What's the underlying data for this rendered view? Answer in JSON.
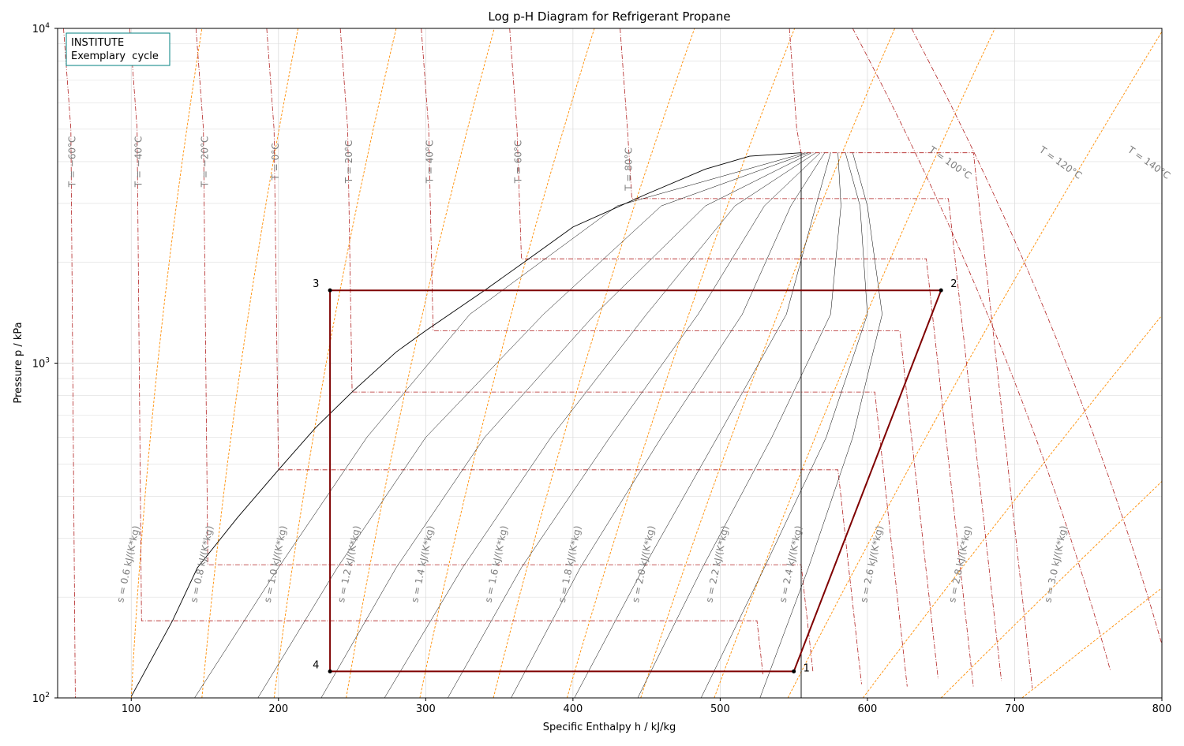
{
  "chart_data": {
    "type": "line",
    "title": "Log p-H Diagram for Refrigerant Propane",
    "xlabel": "Specific Enthalpy h / kJ/kg",
    "ylabel": "Pressure p / kPa",
    "xlim": [
      50,
      800
    ],
    "ylim": [
      100,
      10000
    ],
    "yscale": "log",
    "grid": true,
    "x_ticks": [
      "100",
      "200",
      "300",
      "400",
      "500",
      "600",
      "700",
      "800"
    ],
    "y_ticks": [
      {
        "base": "10",
        "exp": "2"
      },
      {
        "base": "10",
        "exp": "3"
      },
      {
        "base": "10",
        "exp": "4"
      }
    ],
    "annotation_box": [
      "INSTITUTE",
      "Exemplary  cycle"
    ],
    "colors": {
      "cycle": "#7f0000",
      "isotherm": "#b22222",
      "isentrope": "#ff8c00",
      "dome": "#000000",
      "quality": "#000000",
      "label": "#7f7f7f",
      "grid": "#dddddd",
      "annotation_border": "#008080"
    },
    "saturation_dome": {
      "liquid": [
        [
          100,
          101
        ],
        [
          128,
          170
        ],
        [
          145,
          245
        ],
        [
          172,
          345
        ],
        [
          200,
          480
        ],
        [
          225,
          640
        ],
        [
          250,
          820
        ],
        [
          280,
          1080
        ],
        [
          300,
          1250
        ],
        [
          340,
          1650
        ],
        [
          370,
          2050
        ],
        [
          400,
          2550
        ],
        [
          450,
          3200
        ],
        [
          490,
          3800
        ],
        [
          520,
          4150
        ],
        [
          555,
          4250
        ]
      ],
      "vapor": [
        [
          555,
          4250
        ],
        [
          555,
          100
        ]
      ]
    },
    "quality_lines": [
      {
        "x": 0.1,
        "points": [
          [
            143,
            100
          ],
          [
            200,
            245
          ],
          [
            260,
            600
          ],
          [
            330,
            1400
          ],
          [
            430,
            2950
          ],
          [
            558,
            4250
          ]
        ]
      },
      {
        "x": 0.2,
        "points": [
          [
            186,
            100
          ],
          [
            240,
            245
          ],
          [
            300,
            600
          ],
          [
            380,
            1400
          ],
          [
            460,
            2950
          ],
          [
            560,
            4250
          ]
        ]
      },
      {
        "x": 0.3,
        "points": [
          [
            229,
            100
          ],
          [
            280,
            245
          ],
          [
            340,
            600
          ],
          [
            415,
            1400
          ],
          [
            490,
            2950
          ],
          [
            562,
            4250
          ]
        ]
      },
      {
        "x": 0.4,
        "points": [
          [
            272,
            100
          ],
          [
            325,
            245
          ],
          [
            385,
            600
          ],
          [
            450,
            1400
          ],
          [
            510,
            2950
          ],
          [
            565,
            4250
          ]
        ]
      },
      {
        "x": 0.5,
        "points": [
          [
            315,
            100
          ],
          [
            365,
            245
          ],
          [
            425,
            600
          ],
          [
            485,
            1400
          ],
          [
            530,
            2950
          ],
          [
            568,
            4250
          ]
        ]
      },
      {
        "x": 0.6,
        "points": [
          [
            358,
            100
          ],
          [
            405,
            245
          ],
          [
            460,
            600
          ],
          [
            515,
            1400
          ],
          [
            548,
            2950
          ],
          [
            571,
            4250
          ]
        ]
      },
      {
        "x": 0.7,
        "points": [
          [
            401,
            100
          ],
          [
            448,
            245
          ],
          [
            498,
            600
          ],
          [
            545,
            1400
          ],
          [
            565,
            2950
          ],
          [
            575,
            4250
          ]
        ]
      },
      {
        "x": 0.8,
        "points": [
          [
            444,
            100
          ],
          [
            488,
            245
          ],
          [
            535,
            600
          ],
          [
            575,
            1400
          ],
          [
            582,
            2950
          ],
          [
            580,
            4250
          ]
        ]
      },
      {
        "x": 0.9,
        "points": [
          [
            487,
            100
          ],
          [
            530,
            245
          ],
          [
            572,
            600
          ],
          [
            600,
            1400
          ],
          [
            595,
            2950
          ],
          [
            585,
            4250
          ]
        ]
      },
      {
        "x": 1.0,
        "points": [
          [
            527,
            100
          ],
          [
            560,
            245
          ],
          [
            590,
            600
          ],
          [
            610,
            1400
          ],
          [
            600,
            2950
          ],
          [
            590,
            4250
          ]
        ]
      }
    ],
    "isotherms": [
      {
        "label": "T = −60°C",
        "x_liq": 62,
        "x_vap": 475,
        "tlbl": [
          62,
          4000
        ]
      },
      {
        "label": "T = −40°C",
        "x_liq": 107,
        "x_vap": 525,
        "tlbl": [
          107,
          4000
        ]
      },
      {
        "label": "T = −20°C",
        "x_liq": 152,
        "x_vap": 555,
        "tlbl": [
          152,
          4000
        ]
      },
      {
        "label": "T = 0°C",
        "x_liq": 200,
        "x_vap": 580,
        "tlbl": [
          200,
          4000
        ]
      },
      {
        "label": "T = 20°C",
        "x_liq": 250,
        "x_vap": 605,
        "tlbl": [
          250,
          4000
        ]
      },
      {
        "label": "T = 40°C",
        "x_liq": 305,
        "x_vap": 622,
        "tlbl": [
          305,
          4000
        ]
      },
      {
        "label": "T = 60°C",
        "x_liq": 365,
        "x_vap": 640,
        "tlbl": [
          365,
          4000
        ]
      },
      {
        "label": "T = 80°C",
        "x_liq": 440,
        "x_vap": 655,
        "tlbl": [
          440,
          3800
        ]
      },
      {
        "label": "T = 100°C",
        "x_liq": 555,
        "x_vap": 672,
        "tlbl": [
          655,
          3900
        ]
      },
      {
        "label": "T = 120°C",
        "x_liq": null,
        "x_vap": 710,
        "tlbl": [
          730,
          3900
        ]
      },
      {
        "label": "T = 140°C",
        "x_liq": null,
        "x_vap": 750,
        "tlbl": [
          790,
          3900
        ]
      }
    ],
    "isentropes": [
      {
        "label": "s = 0.6 kJ/(K*kg)",
        "x_at_100": 100,
        "lbl": [
          100,
          250
        ]
      },
      {
        "label": "s = 0.8 kJ/(K*kg)",
        "x_at_100": 148,
        "lbl": [
          150,
          250
        ]
      },
      {
        "label": "s = 1.0 kJ/(K*kg)",
        "x_at_100": 197,
        "lbl": [
          200,
          250
        ]
      },
      {
        "label": "s = 1.2 kJ/(K*kg)",
        "x_at_100": 246,
        "lbl": [
          250,
          250
        ]
      },
      {
        "label": "s = 1.4 kJ/(K*kg)",
        "x_at_100": 296,
        "lbl": [
          300,
          250
        ]
      },
      {
        "label": "s = 1.6 kJ/(K*kg)",
        "x_at_100": 346,
        "lbl": [
          350,
          250
        ]
      },
      {
        "label": "s = 1.8 kJ/(K*kg)",
        "x_at_100": 396,
        "lbl": [
          400,
          250
        ]
      },
      {
        "label": "s = 2.0 kJ/(K*kg)",
        "x_at_100": 446,
        "lbl": [
          450,
          250
        ]
      },
      {
        "label": "s = 2.2 kJ/(K*kg)",
        "x_at_100": 496,
        "lbl": [
          500,
          250
        ]
      },
      {
        "label": "s = 2.4 kJ/(K*kg)",
        "x_at_100": 546,
        "lbl": [
          550,
          250
        ]
      },
      {
        "label": "s = 2.6 kJ/(K*kg)",
        "x_at_100": 597,
        "lbl": [
          605,
          250
        ]
      },
      {
        "label": "s = 2.8 kJ/(K*kg)",
        "x_at_100": 650,
        "lbl": [
          665,
          250
        ]
      },
      {
        "label": "s = 3.0 kJ/(K*kg)",
        "x_at_100": 705,
        "lbl": [
          730,
          250
        ]
      }
    ],
    "cycle": {
      "points": [
        {
          "label": "1",
          "h": 550,
          "p": 120
        },
        {
          "label": "2",
          "h": 650,
          "p": 1650
        },
        {
          "label": "3",
          "h": 235,
          "p": 1650
        },
        {
          "label": "4",
          "h": 235,
          "p": 120
        }
      ]
    }
  }
}
